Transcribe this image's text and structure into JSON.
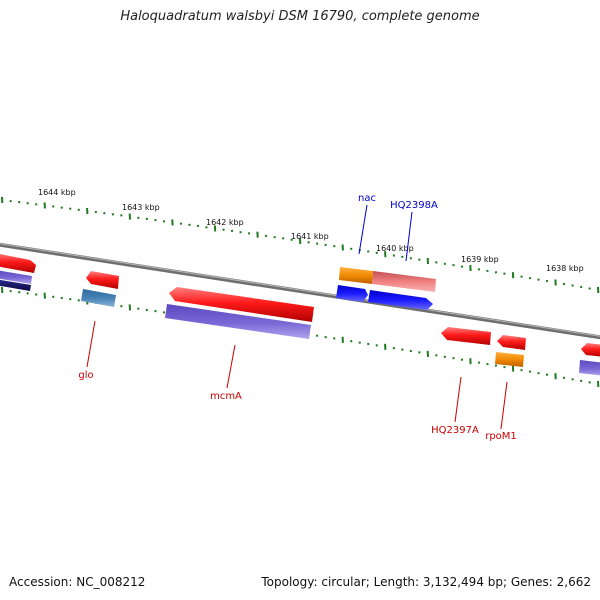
{
  "title": "Haloquadratum walsbyi DSM 16790, complete genome",
  "footer": {
    "accession": "Accession: NC_008212",
    "summary": "Topology: circular; Length: 3,132,494 bp; Genes: 2,662"
  },
  "colors": {
    "backbone": "#7a7a7a",
    "tick": "#1e7a1e",
    "gene_red": "#ee1111",
    "gene_purple": "#7b68d6",
    "gene_blue": "#1a1aff",
    "gene_orange": "#f08a00",
    "gene_pink": "#f08080",
    "gene_steel": "#4682b4",
    "gene_navy": "#1a1a70",
    "label_red": "#cc0000",
    "label_blue": "#0000cc"
  },
  "scale_labels": [
    "1644 kbp",
    "1643 kbp",
    "1642 kbp",
    "1641 kbp",
    "1640 kbp",
    "1639 kbp",
    "1638 kbp"
  ],
  "gene_labels": [
    "nac",
    "HQ2398A",
    "glo",
    "mcmA",
    "HQ2397A",
    "rpoM1"
  ]
}
